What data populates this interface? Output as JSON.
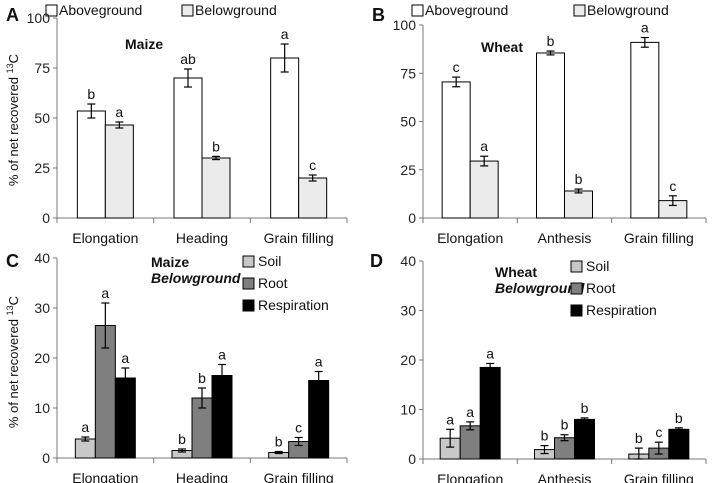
{
  "figure": {
    "y_axis_label": "% of net recovered",
    "y_axis_isotope_mass": "13",
    "y_axis_isotope_element": "C"
  },
  "chart_data": [
    {
      "panel": "A",
      "title": "Maize",
      "subtitle": "",
      "type": "bar",
      "categories": [
        "Elongation",
        "Heading",
        "Grain filling"
      ],
      "ylim": [
        0,
        100
      ],
      "yticks": [
        0,
        25,
        50,
        75,
        100
      ],
      "legend_position": "top",
      "series": [
        {
          "name": "Aboveground",
          "color": "#ffffff",
          "values": [
            53.5,
            70,
            80
          ],
          "errors": [
            3.5,
            4.5,
            7
          ],
          "letters": [
            "b",
            "ab",
            "a"
          ]
        },
        {
          "name": "Belowground",
          "color": "#ebebeb",
          "values": [
            46.5,
            30,
            20
          ],
          "errors": [
            1.5,
            0.8,
            1.5
          ],
          "letters": [
            "a",
            "b",
            "c"
          ]
        }
      ]
    },
    {
      "panel": "B",
      "title": "Wheat",
      "subtitle": "",
      "type": "bar",
      "categories": [
        "Elongation",
        "Anthesis",
        "Grain filling"
      ],
      "ylim": [
        0,
        100
      ],
      "yticks": [
        0,
        25,
        50,
        75,
        100
      ],
      "legend_position": "top",
      "series": [
        {
          "name": "Aboveground",
          "color": "#ffffff",
          "values": [
            70.5,
            85.5,
            91
          ],
          "errors": [
            2.5,
            1,
            2.5
          ],
          "letters": [
            "c",
            "b",
            "a"
          ]
        },
        {
          "name": "Belowground",
          "color": "#ebebeb",
          "values": [
            29.5,
            14,
            9
          ],
          "errors": [
            2.5,
            1,
            2.5
          ],
          "letters": [
            "a",
            "b",
            "c"
          ]
        }
      ]
    },
    {
      "panel": "C",
      "title": "Maize",
      "subtitle": "Belowground",
      "type": "bar",
      "categories": [
        "Elongation",
        "Heading",
        "Grain filling"
      ],
      "ylim": [
        0,
        40
      ],
      "yticks": [
        0,
        10,
        20,
        30,
        40
      ],
      "legend_position": "top-right",
      "series": [
        {
          "name": "Soil",
          "color": "#c8c8c8",
          "values": [
            3.8,
            1.5,
            1.1
          ],
          "errors": [
            0.4,
            0.3,
            0.2
          ],
          "letters": [
            "a",
            "b",
            "b"
          ]
        },
        {
          "name": "Root",
          "color": "#7f7f7f",
          "values": [
            26.5,
            12,
            3.3
          ],
          "errors": [
            4.5,
            2,
            0.8
          ],
          "letters": [
            "a",
            "b",
            "c"
          ]
        },
        {
          "name": "Respiration",
          "color": "#000000",
          "values": [
            16,
            16.5,
            15.5
          ],
          "errors": [
            2,
            2.2,
            1.8
          ],
          "letters": [
            "a",
            "a",
            "a"
          ]
        }
      ]
    },
    {
      "panel": "D",
      "title": "Wheat",
      "subtitle": "Belowground",
      "type": "bar",
      "categories": [
        "Elongation",
        "Anthesis",
        "Grain filling"
      ],
      "ylim": [
        0,
        40
      ],
      "yticks": [
        0,
        10,
        20,
        30,
        40
      ],
      "legend_position": "top-left",
      "series": [
        {
          "name": "Soil",
          "color": "#c8c8c8",
          "values": [
            4.2,
            1.9,
            1.0
          ],
          "errors": [
            1.8,
            0.8,
            1.2
          ],
          "letters": [
            "a",
            "b",
            "b"
          ]
        },
        {
          "name": "Root",
          "color": "#7f7f7f",
          "values": [
            6.7,
            4.3,
            2.2
          ],
          "errors": [
            0.8,
            0.6,
            1.2
          ],
          "letters": [
            "a",
            "b",
            "c"
          ]
        },
        {
          "name": "Respiration",
          "color": "#000000",
          "values": [
            18.5,
            8.0,
            6.0
          ],
          "errors": [
            0.8,
            0.3,
            0.3
          ],
          "letters": [
            "a",
            "b",
            "b"
          ]
        }
      ]
    }
  ]
}
